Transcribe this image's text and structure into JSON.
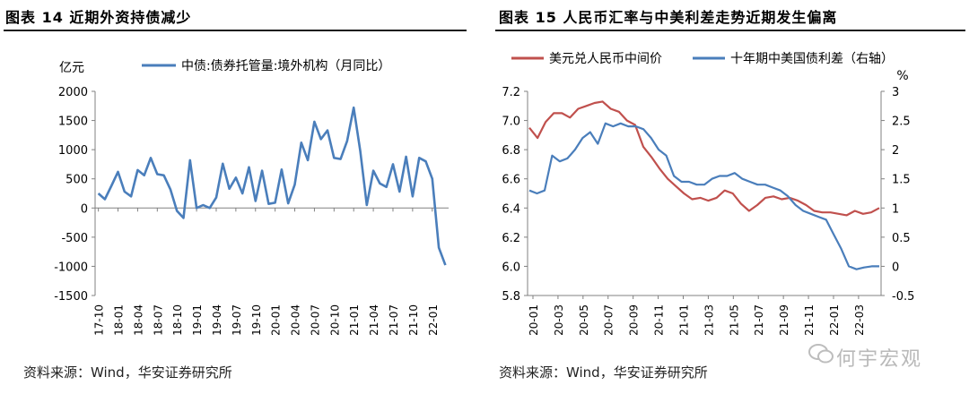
{
  "left": {
    "title": "图表 14  近期外资持债减少",
    "source": "资料来源：Wind，华安证券研究所"
  },
  "right": {
    "title": "图表 15  人民币汇率与中美利差走势近期发生偏离",
    "source": "资料来源：Wind，华安证券研究所"
  },
  "watermark": "何宇宏观",
  "colors": {
    "blue": "#4a7ebb",
    "red": "#c0504d",
    "axis": "#808080"
  },
  "chart_data": [
    {
      "type": "line",
      "ylabel": "亿元",
      "ylim": [
        -1500,
        2000
      ],
      "yticks": [
        -1500,
        -1000,
        -500,
        0,
        500,
        1000,
        1500,
        2000
      ],
      "xtick_labels": [
        "17-10",
        "18-01",
        "18-04",
        "18-07",
        "18-10",
        "19-01",
        "19-04",
        "19-07",
        "19-10",
        "20-01",
        "20-04",
        "20-07",
        "20-10",
        "21-01",
        "21-04",
        "21-07",
        "21-10",
        "22-01"
      ],
      "legend": "top",
      "series": [
        {
          "name": "中债:债券托管量:境外机构（月同比）",
          "color": "#4a7ebb",
          "x_start": "17-10",
          "values": [
            250,
            150,
            380,
            620,
            280,
            200,
            650,
            560,
            860,
            580,
            560,
            320,
            -50,
            -170,
            820,
            0,
            50,
            0,
            180,
            760,
            330,
            520,
            250,
            700,
            120,
            640,
            70,
            90,
            660,
            80,
            400,
            1120,
            820,
            1480,
            1180,
            1330,
            860,
            840,
            1150,
            1720,
            980,
            50,
            640,
            420,
            360,
            750,
            280,
            880,
            200,
            860,
            800,
            500,
            -680,
            -980
          ]
        }
      ]
    },
    {
      "type": "line",
      "ylabel_left": "",
      "ylabel_right": "%",
      "ylim_left": [
        5.8,
        7.2
      ],
      "yticks_left": [
        5.8,
        6.0,
        6.2,
        6.4,
        6.6,
        6.8,
        7.0,
        7.2
      ],
      "ylim_right": [
        -0.5,
        3.0
      ],
      "yticks_right": [
        -0.5,
        0,
        0.5,
        1,
        1.5,
        2,
        2.5,
        3
      ],
      "xtick_labels": [
        "20-01",
        "20-03",
        "20-05",
        "20-07",
        "20-09",
        "20-11",
        "21-01",
        "21-03",
        "21-05",
        "21-07",
        "21-09",
        "21-11",
        "22-01",
        "22-03"
      ],
      "legend": "top",
      "series": [
        {
          "name": "美元兑人民币中间价",
          "axis": "left",
          "color": "#c0504d",
          "x_start": "20-01",
          "values": [
            6.95,
            6.88,
            6.99,
            7.05,
            7.05,
            7.02,
            7.08,
            7.1,
            7.12,
            7.13,
            7.08,
            7.06,
            7.0,
            6.97,
            6.82,
            6.75,
            6.67,
            6.6,
            6.55,
            6.5,
            6.46,
            6.47,
            6.45,
            6.47,
            6.52,
            6.5,
            6.43,
            6.38,
            6.42,
            6.47,
            6.48,
            6.46,
            6.47,
            6.45,
            6.42,
            6.38,
            6.37,
            6.37,
            6.36,
            6.35,
            6.38,
            6.36,
            6.37,
            6.4
          ]
        },
        {
          "name": "十年期中美国债利差（右轴）",
          "axis": "right",
          "color": "#4a7ebb",
          "x_start": "20-01",
          "values": [
            1.3,
            1.25,
            1.3,
            1.9,
            1.8,
            1.85,
            2.0,
            2.2,
            2.3,
            2.1,
            2.45,
            2.4,
            2.45,
            2.4,
            2.4,
            2.35,
            2.2,
            2.0,
            1.9,
            1.55,
            1.45,
            1.45,
            1.4,
            1.4,
            1.5,
            1.55,
            1.55,
            1.6,
            1.5,
            1.45,
            1.4,
            1.4,
            1.35,
            1.3,
            1.2,
            1.05,
            0.95,
            0.9,
            0.85,
            0.8,
            0.55,
            0.3,
            0.0,
            -0.05,
            -0.02,
            0.0,
            0.0
          ]
        }
      ]
    }
  ]
}
